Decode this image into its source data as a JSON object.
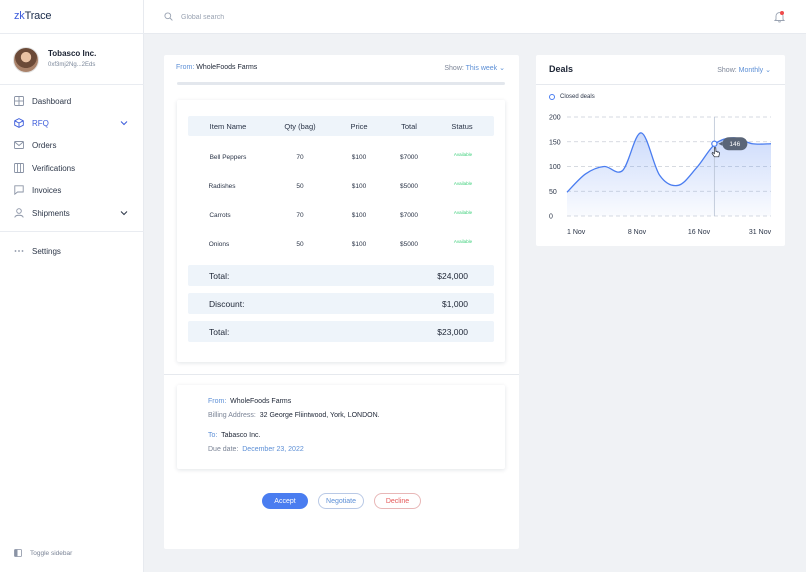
{
  "app": {
    "logo_prefix": "zk",
    "logo_suffix": "Trace"
  },
  "profile": {
    "name": "Tobasco Inc.",
    "address": "0xf3mj2Ng...2Eds"
  },
  "sidebar": {
    "items": [
      {
        "label": "Dashboard",
        "icon": "dashboard-icon"
      },
      {
        "label": "RFQ",
        "icon": "box-icon",
        "has_chevron": true
      },
      {
        "label": "Orders",
        "icon": "mail-icon"
      },
      {
        "label": "Verifications",
        "icon": "columns-icon"
      },
      {
        "label": "Invoices",
        "icon": "chat-icon"
      },
      {
        "label": "Shipments",
        "icon": "user-icon",
        "has_chevron": true
      }
    ],
    "settings_label": "Settings",
    "toggle_label": "Toggle sidebar"
  },
  "topbar": {
    "search_placeholder": "Global search",
    "notification_dot": true
  },
  "order": {
    "from_label": "From:",
    "from_value": "WholeFoods Farms",
    "show_label": "Show:",
    "show_value": "This week",
    "table": {
      "headers": [
        "Item Name",
        "Qty (bag)",
        "Price",
        "Total",
        "Status"
      ],
      "rows": [
        {
          "item": "Bell Peppers",
          "qty": "70",
          "price": "$100",
          "total": "$7000",
          "status": "Available"
        },
        {
          "item": "Radishes",
          "qty": "50",
          "price": "$100",
          "total": "$5000",
          "status": "Available"
        },
        {
          "item": "Carrots",
          "qty": "70",
          "price": "$100",
          "total": "$7000",
          "status": "Available"
        },
        {
          "item": "Onions",
          "qty": "50",
          "price": "$100",
          "total": "$5000",
          "status": "Available"
        }
      ]
    },
    "summary": [
      {
        "label": "Total:",
        "value": "$24,000"
      },
      {
        "label": "Discount:",
        "value": "$1,000"
      },
      {
        "label": "Total:",
        "value": "$23,000"
      }
    ],
    "address": {
      "from_label": "From:",
      "from_value": "WholeFoods Farms",
      "billing_label": "Billing Address:",
      "billing_value": "32 George Fliintwood, York, LONDON.",
      "to_label": "To:",
      "to_value": "Tabasco Inc.",
      "due_label": "Due date:",
      "due_value": "December 23, 2022"
    },
    "buttons": {
      "accept": "Accept",
      "negotiate": "Negotiate",
      "decline": "Decline"
    }
  },
  "deals": {
    "title": "Deals",
    "show_label": "Show:",
    "show_value": "Monthly",
    "legend_label": "Closed deals",
    "tooltip_value": "146"
  },
  "colors": {
    "accent": "#4a7df0",
    "status_available": "#3ccf7a",
    "decline": "#e45858",
    "link": "#5c8fd6"
  },
  "chart_data": {
    "type": "area",
    "series": [
      {
        "name": "Closed deals",
        "values": [
          48,
          85,
          100,
          92,
          168,
          82,
          62,
          98,
          146,
          158,
          146,
          146
        ]
      }
    ],
    "x": [
      "1 Nov",
      "",
      "",
      "8 Nov",
      "",
      "",
      "16 Nov",
      "",
      "",
      "",
      "",
      "31 Nov"
    ],
    "x_tick_labels": [
      "1 Nov",
      "8 Nov",
      "16 Nov",
      "31 Nov"
    ],
    "y_tick_labels": [
      "0",
      "50",
      "100",
      "150",
      "200"
    ],
    "ylim": [
      0,
      200
    ],
    "grid": "dashed horizontal",
    "highlight": {
      "value": 146
    }
  }
}
